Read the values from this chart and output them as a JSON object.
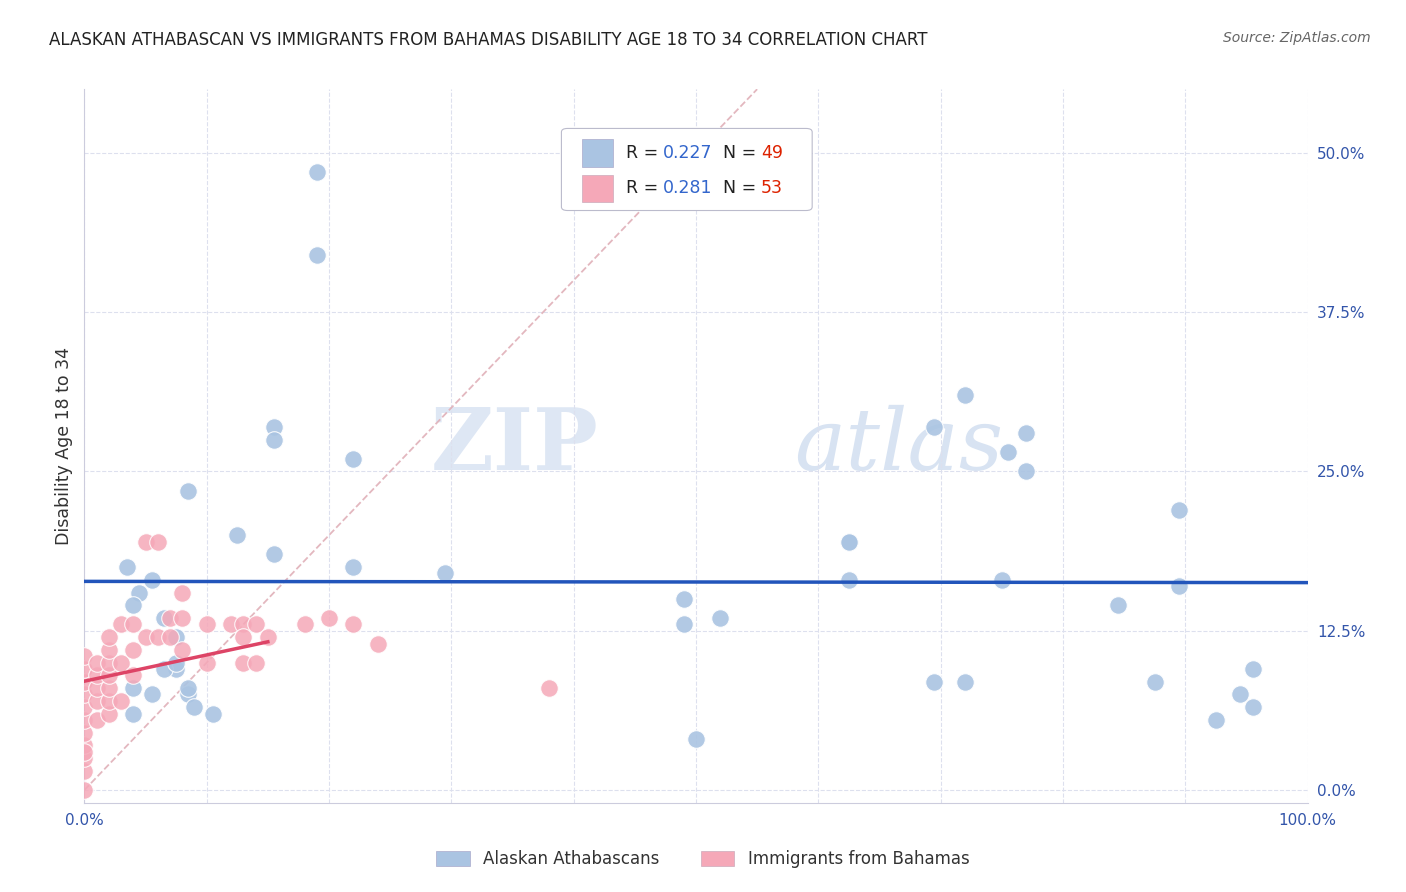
{
  "title": "ALASKAN ATHABASCAN VS IMMIGRANTS FROM BAHAMAS DISABILITY AGE 18 TO 34 CORRELATION CHART",
  "source": "Source: ZipAtlas.com",
  "ylabel": "Disability Age 18 to 34",
  "xlabel": "",
  "watermark_zip": "ZIP",
  "watermark_atlas": "atlas",
  "blue_R": 0.227,
  "blue_N": 49,
  "pink_R": 0.281,
  "pink_N": 53,
  "blue_color": "#aac4e2",
  "pink_color": "#f5a8b8",
  "blue_line_color": "#2255bb",
  "pink_line_color": "#dd4466",
  "diagonal_color": "#e0b0b8",
  "background_color": "#ffffff",
  "grid_color": "#dde0ee",
  "xlim": [
    0.0,
    1.0
  ],
  "ylim": [
    -0.01,
    0.55
  ],
  "yticks": [
    0.0,
    0.125,
    0.25,
    0.375,
    0.5
  ],
  "ytick_labels": [
    "0.0%",
    "12.5%",
    "25.0%",
    "37.5%",
    "50.0%"
  ],
  "xticks": [
    0.0,
    0.1,
    0.2,
    0.3,
    0.4,
    0.5,
    0.6,
    0.7,
    0.8,
    0.9,
    1.0
  ],
  "xtick_labels": [
    "0.0%",
    "",
    "",
    "",
    "",
    "",
    "",
    "",
    "",
    "",
    "100.0%"
  ],
  "blue_x": [
    0.19,
    0.19,
    0.085,
    0.155,
    0.155,
    0.035,
    0.055,
    0.045,
    0.04,
    0.065,
    0.075,
    0.075,
    0.04,
    0.125,
    0.155,
    0.22,
    0.22,
    0.295,
    0.49,
    0.49,
    0.625,
    0.625,
    0.695,
    0.72,
    0.75,
    0.755,
    0.77,
    0.77,
    0.845,
    0.875,
    0.895,
    0.895,
    0.925,
    0.945,
    0.955,
    0.955,
    0.52,
    0.625,
    0.695,
    0.72,
    0.04,
    0.055,
    0.065,
    0.075,
    0.085,
    0.085,
    0.09,
    0.105,
    0.5
  ],
  "blue_y": [
    0.485,
    0.42,
    0.235,
    0.285,
    0.275,
    0.175,
    0.165,
    0.155,
    0.145,
    0.135,
    0.12,
    0.095,
    0.06,
    0.2,
    0.185,
    0.175,
    0.26,
    0.17,
    0.15,
    0.13,
    0.195,
    0.165,
    0.285,
    0.31,
    0.165,
    0.265,
    0.28,
    0.25,
    0.145,
    0.085,
    0.22,
    0.16,
    0.055,
    0.075,
    0.065,
    0.095,
    0.135,
    0.195,
    0.085,
    0.085,
    0.08,
    0.075,
    0.095,
    0.1,
    0.075,
    0.08,
    0.065,
    0.06,
    0.04
  ],
  "pink_x": [
    0.0,
    0.0,
    0.0,
    0.0,
    0.0,
    0.0,
    0.0,
    0.0,
    0.0,
    0.0,
    0.0,
    0.0,
    0.01,
    0.01,
    0.01,
    0.01,
    0.01,
    0.02,
    0.02,
    0.02,
    0.02,
    0.02,
    0.02,
    0.02,
    0.03,
    0.03,
    0.03,
    0.04,
    0.04,
    0.04,
    0.05,
    0.05,
    0.06,
    0.06,
    0.07,
    0.07,
    0.08,
    0.08,
    0.08,
    0.1,
    0.1,
    0.12,
    0.13,
    0.13,
    0.13,
    0.14,
    0.14,
    0.15,
    0.18,
    0.2,
    0.22,
    0.24,
    0.38
  ],
  "pink_y": [
    0.0,
    0.015,
    0.025,
    0.035,
    0.045,
    0.055,
    0.065,
    0.075,
    0.085,
    0.095,
    0.105,
    0.03,
    0.055,
    0.07,
    0.08,
    0.09,
    0.1,
    0.06,
    0.07,
    0.08,
    0.09,
    0.1,
    0.11,
    0.12,
    0.07,
    0.1,
    0.13,
    0.09,
    0.11,
    0.13,
    0.12,
    0.195,
    0.12,
    0.195,
    0.12,
    0.135,
    0.11,
    0.135,
    0.155,
    0.13,
    0.1,
    0.13,
    0.13,
    0.12,
    0.1,
    0.13,
    0.1,
    0.12,
    0.13,
    0.135,
    0.13,
    0.115,
    0.08
  ]
}
